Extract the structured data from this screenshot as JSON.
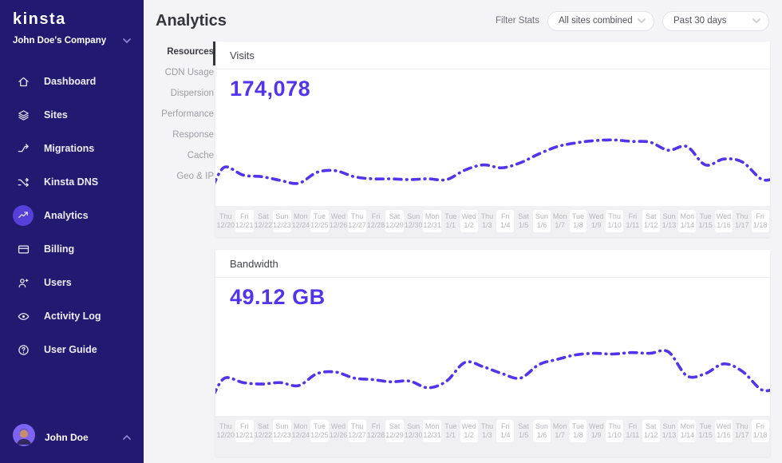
{
  "brand": {
    "logo_text": "kinsta",
    "company_name": "John Doe's Company"
  },
  "sidebar": {
    "items": [
      {
        "label": "Dashboard",
        "icon": "home"
      },
      {
        "label": "Sites",
        "icon": "layers"
      },
      {
        "label": "Migrations",
        "icon": "branch-arrow"
      },
      {
        "label": "Kinsta DNS",
        "icon": "route"
      },
      {
        "label": "Analytics",
        "icon": "trending-up",
        "active": true
      },
      {
        "label": "Billing",
        "icon": "credit-card"
      },
      {
        "label": "Users",
        "icon": "user-plus"
      },
      {
        "label": "Activity Log",
        "icon": "eye"
      },
      {
        "label": "User Guide",
        "icon": "question-circle"
      }
    ],
    "user": {
      "name": "John Doe"
    }
  },
  "header": {
    "title": "Analytics",
    "filter_label": "Filter Stats",
    "filters": [
      {
        "value": "All sites combined"
      },
      {
        "value": "Past 30 days"
      }
    ]
  },
  "subnav": {
    "active": "Resources",
    "items": [
      "Resources",
      "CDN Usage",
      "Dispersion",
      "Performance",
      "Response",
      "Cache",
      "Geo & IP"
    ]
  },
  "colors": {
    "accent": "#5333ed",
    "sidebar_bg": "#211a70",
    "active_icon_bg": "#5640d9",
    "main_bg": "#f4f4f6",
    "card_bg": "#ffffff",
    "axis_strip_bg": "#f0f0f2",
    "axis_text": "#b6b6bc",
    "line": "#5333ed"
  },
  "chart_data": [
    {
      "type": "line",
      "title": "Visits",
      "total_label": "174,078",
      "style": "dashed",
      "color": "#5333ed",
      "legend_position": "none",
      "grid": false,
      "x_days": [
        "Thu",
        "Fri",
        "Sat",
        "Sun",
        "Mon",
        "Tue",
        "Wed",
        "Thu",
        "Fri",
        "Sat",
        "Sun",
        "Mon",
        "Tue",
        "Wed",
        "Thu",
        "Fri",
        "Sat",
        "Sun",
        "Mon",
        "Tue",
        "Wed",
        "Thu",
        "Fri",
        "Sat",
        "Sun",
        "Mon",
        "Tue",
        "Wed",
        "Thu",
        "Fri"
      ],
      "x_dates": [
        "12/20",
        "12/21",
        "12/22",
        "12/23",
        "12/24",
        "12/25",
        "12/26",
        "12/27",
        "12/28",
        "12/29",
        "12/30",
        "12/31",
        "1/1",
        "1/2",
        "1/3",
        "1/4",
        "1/5",
        "1/6",
        "1/7",
        "1/8",
        "1/9",
        "1/10",
        "1/11",
        "1/12",
        "1/13",
        "1/14",
        "1/15",
        "1/16",
        "1/17",
        "1/18"
      ],
      "values": [
        29,
        18,
        16,
        11,
        7,
        22,
        24,
        16,
        13,
        13,
        12,
        13,
        12,
        25,
        32,
        28,
        35,
        47,
        57,
        62,
        65,
        66,
        64,
        63,
        52,
        57,
        32,
        40,
        36,
        13
      ],
      "value_note": "relative daily visits, estimated 0-100 scale (no y-axis shown); 30-day total is 174,078"
    },
    {
      "type": "line",
      "title": "Bandwidth",
      "total_label": "49.12 GB",
      "style": "dashed",
      "color": "#5333ed",
      "legend_position": "none",
      "grid": false,
      "x_days": [
        "Thu",
        "Fri",
        "Sat",
        "Sun",
        "Mon",
        "Tue",
        "Wed",
        "Thu",
        "Fri",
        "Sat",
        "Sun",
        "Mon",
        "Tue",
        "Wed",
        "Thu",
        "Fri",
        "Sat",
        "Sun",
        "Mon",
        "Tue",
        "Wed",
        "Thu",
        "Fri",
        "Sat",
        "Sun",
        "Mon",
        "Tue",
        "Wed",
        "Thu",
        "Fri"
      ],
      "x_dates": [
        "12/20",
        "12/21",
        "12/22",
        "12/23",
        "12/24",
        "12/25",
        "12/26",
        "12/27",
        "12/28",
        "12/29",
        "12/30",
        "12/31",
        "1/1",
        "1/2",
        "1/3",
        "1/4",
        "1/5",
        "1/6",
        "1/7",
        "1/8",
        "1/9",
        "1/10",
        "1/11",
        "1/12",
        "1/13",
        "1/14",
        "1/15",
        "1/16",
        "1/17",
        "1/18"
      ],
      "values": [
        27,
        21,
        19,
        21,
        17,
        33,
        35,
        27,
        25,
        22,
        23,
        14,
        23,
        48,
        42,
        33,
        27,
        45,
        52,
        58,
        60,
        59,
        61,
        60,
        62,
        30,
        33,
        46,
        36,
        12
      ],
      "value_note": "relative daily bandwidth, estimated 0-100 scale (no y-axis shown); 30-day total is 49.12 GB"
    }
  ]
}
